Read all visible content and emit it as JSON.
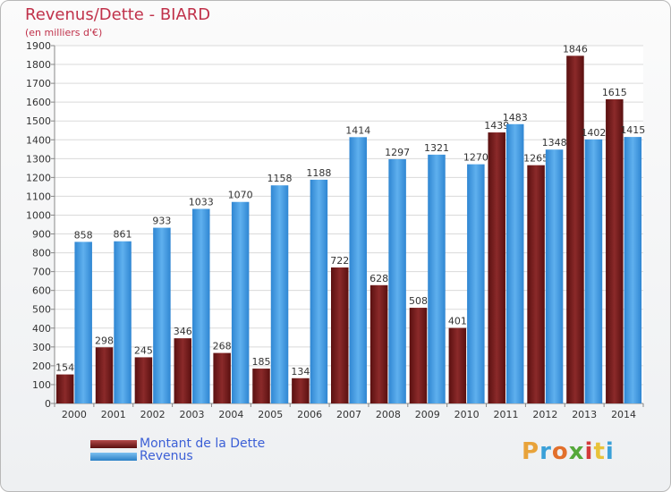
{
  "header": {
    "title": "Revenus/Dette - BIARD",
    "subtitle": "(en milliers d'€)"
  },
  "legend": {
    "dette_label": "Montant de la Dette",
    "revenus_label": "Revenus"
  },
  "logo": {
    "text": "Proxiti"
  },
  "colors": {
    "dette": "#7a1a1a",
    "revenus": "#3a96df",
    "axis_text": "#333333",
    "title": "#c0314a"
  },
  "chart_data": {
    "type": "bar",
    "title": "Revenus/Dette - BIARD",
    "ylabel": "(en milliers d'€)",
    "categories": [
      "2000",
      "2001",
      "2002",
      "2003",
      "2004",
      "2005",
      "2006",
      "2007",
      "2008",
      "2009",
      "2010",
      "2011",
      "2012",
      "2013",
      "2014"
    ],
    "series": [
      {
        "name": "Montant de la Dette",
        "values": [
          154,
          298,
          245,
          346,
          268,
          185,
          134,
          722,
          628,
          508,
          401,
          1439,
          1265,
          1846,
          1615
        ],
        "labels": [
          "154",
          "298",
          "245",
          "346",
          "268",
          "185",
          "134",
          "722",
          "628",
          "508",
          "401",
          "1439",
          "1265",
          "1846",
          "1615"
        ]
      },
      {
        "name": "Revenus",
        "values": [
          858,
          861,
          933,
          1033,
          1070,
          1158,
          1188,
          1414,
          1297,
          1321,
          1270,
          1483,
          1348,
          1402,
          1415
        ],
        "labels": [
          "858",
          "861",
          "933",
          "1033",
          "1070",
          "1158",
          "1188",
          "1414",
          "1297",
          "1321",
          "1270",
          "1483",
          "1348",
          "1402",
          "1415"
        ]
      }
    ],
    "yticks": [
      0,
      100,
      200,
      300,
      400,
      500,
      600,
      700,
      800,
      900,
      1000,
      1100,
      1200,
      1300,
      1400,
      1500,
      1600,
      1700,
      1800,
      1900
    ],
    "ylim": [
      0,
      1900
    ],
    "grid": true,
    "legend_position": "bottom-left"
  }
}
